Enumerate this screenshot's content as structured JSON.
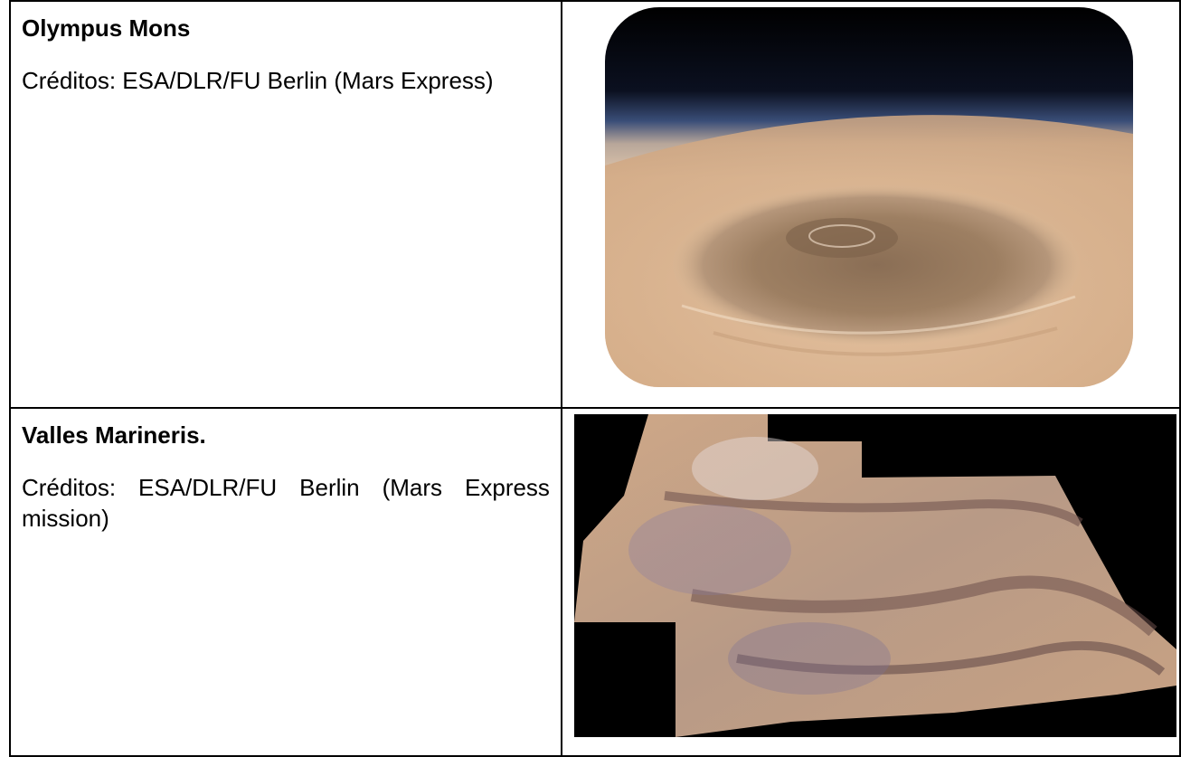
{
  "rows": [
    {
      "title": "Olympus Mons",
      "credits": "Créditos: ESA/DLR/FU Berlin (Mars Express)",
      "image_subject": "olympus-mons-photo"
    },
    {
      "title": "Valles Marineris.",
      "credits": "Créditos: ESA/DLR/FU Berlin (Mars Express mission)",
      "image_subject": "valles-marineris-photo"
    }
  ],
  "colors": {
    "border": "#000000",
    "mars_sand": "#d9b08c",
    "space": "#000000"
  }
}
